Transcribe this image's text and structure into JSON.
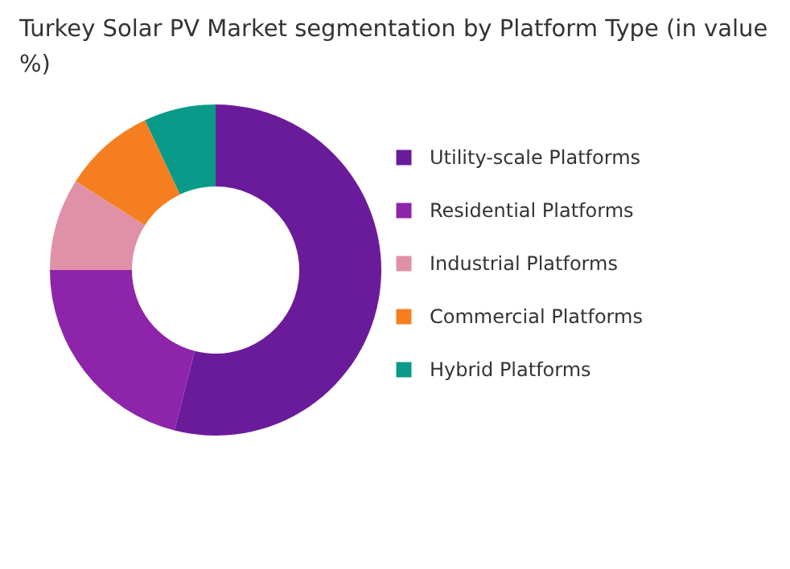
{
  "chart_data": {
    "type": "donut",
    "title": "Turkey Solar PV Market segmentation by Platform Type (in value %)",
    "categories": [
      "Utility-scale Platforms",
      "Residential Platforms",
      "Industrial Platforms",
      "Commercial Platforms",
      "Hybrid Platforms"
    ],
    "values": [
      54,
      21,
      9,
      9,
      7
    ],
    "colors": [
      "#6a1b9a",
      "#8e24aa",
      "#e091a8",
      "#f57f20",
      "#0a9a8a"
    ],
    "legend": "right"
  }
}
